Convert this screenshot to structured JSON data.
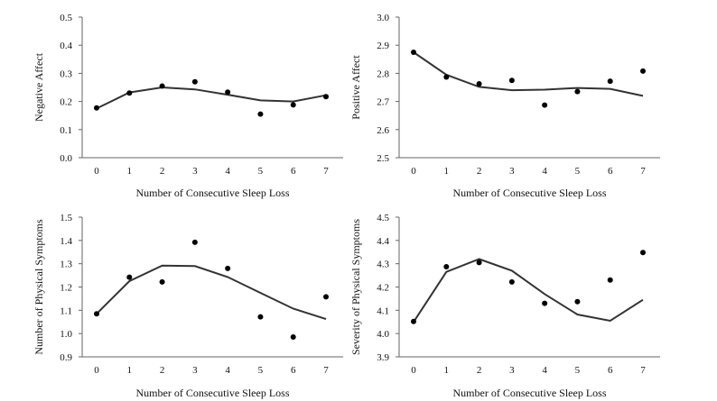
{
  "chart_data": [
    {
      "type": "line",
      "title": "",
      "xlabel": "Number of Consecutive Sleep Loss",
      "ylabel": "Negative Affect",
      "x": [
        0,
        1,
        2,
        3,
        4,
        5,
        6,
        7
      ],
      "ylim": [
        0.0,
        0.5
      ],
      "yticks": [
        "0.0",
        "0.1",
        "0.2",
        "0.3",
        "0.4",
        "0.5"
      ],
      "series": [
        {
          "kind": "line",
          "values": [
            0.175,
            0.232,
            0.25,
            0.243,
            0.224,
            0.204,
            0.2,
            0.222
          ]
        },
        {
          "kind": "points",
          "values": [
            0.177,
            0.23,
            0.255,
            0.27,
            0.233,
            0.155,
            0.188,
            0.217
          ]
        }
      ]
    },
    {
      "type": "line",
      "title": "",
      "xlabel": "Number of Consecutive Sleep Loss",
      "ylabel": "Positive Affect",
      "x": [
        0,
        1,
        2,
        3,
        4,
        5,
        6,
        7
      ],
      "ylim": [
        2.5,
        3.0
      ],
      "yticks": [
        "2.5",
        "2.6",
        "2.7",
        "2.8",
        "2.9",
        "3.0"
      ],
      "series": [
        {
          "kind": "line",
          "values": [
            2.875,
            2.795,
            2.752,
            2.74,
            2.742,
            2.748,
            2.745,
            2.72
          ]
        },
        {
          "kind": "points",
          "values": [
            2.875,
            2.787,
            2.763,
            2.775,
            2.687,
            2.735,
            2.772,
            2.808
          ]
        }
      ]
    },
    {
      "type": "line",
      "title": "",
      "xlabel": "Number of Consecutive Sleep Loss",
      "ylabel": "Number of Physical Symptoms",
      "x": [
        0,
        1,
        2,
        3,
        4,
        5,
        6,
        7
      ],
      "ylim": [
        0.9,
        1.5
      ],
      "yticks": [
        "0.9",
        "1.0",
        "1.1",
        "1.2",
        "1.3",
        "1.4",
        "1.5"
      ],
      "series": [
        {
          "kind": "line",
          "values": [
            1.085,
            1.225,
            1.292,
            1.29,
            1.243,
            1.175,
            1.107,
            1.062
          ]
        },
        {
          "kind": "points",
          "values": [
            1.085,
            1.242,
            1.222,
            1.392,
            1.28,
            1.072,
            0.985,
            1.158
          ]
        }
      ]
    },
    {
      "type": "line",
      "title": "",
      "xlabel": "Number of Consecutive Sleep Loss",
      "ylabel": "Severity of Physical Symptoms",
      "x": [
        0,
        1,
        2,
        3,
        4,
        5,
        6,
        7
      ],
      "ylim": [
        3.9,
        4.5
      ],
      "yticks": [
        "3.9",
        "4.0",
        "4.1",
        "4.2",
        "4.3",
        "4.4",
        "4.5"
      ],
      "series": [
        {
          "kind": "line",
          "values": [
            4.05,
            4.265,
            4.32,
            4.27,
            4.17,
            4.082,
            4.055,
            4.145
          ]
        },
        {
          "kind": "points",
          "values": [
            4.052,
            4.287,
            4.305,
            4.222,
            4.13,
            4.137,
            4.23,
            4.348
          ]
        }
      ]
    }
  ]
}
